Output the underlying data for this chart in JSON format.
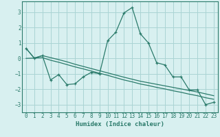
{
  "xlabel": "Humidex (Indice chaleur)",
  "x": [
    0,
    1,
    2,
    3,
    4,
    5,
    6,
    7,
    8,
    9,
    10,
    11,
    12,
    13,
    14,
    15,
    16,
    17,
    18,
    19,
    20,
    21,
    22,
    23
  ],
  "line1": [
    0.65,
    0.02,
    0.18,
    -1.4,
    -1.05,
    -1.7,
    -1.65,
    -1.2,
    -0.9,
    -1.0,
    1.15,
    1.7,
    2.95,
    3.3,
    1.6,
    1.0,
    -0.28,
    -0.42,
    -1.2,
    -1.2,
    -2.05,
    -2.05,
    -3.0,
    -2.85
  ],
  "line2": [
    0.65,
    0.02,
    0.18,
    0.05,
    -0.08,
    -0.22,
    -0.38,
    -0.52,
    -0.66,
    -0.8,
    -0.94,
    -1.08,
    -1.22,
    -1.35,
    -1.48,
    -1.58,
    -1.68,
    -1.78,
    -1.88,
    -1.98,
    -2.08,
    -2.18,
    -2.3,
    -2.42
  ],
  "line3": [
    0.0,
    0.02,
    0.05,
    -0.12,
    -0.25,
    -0.4,
    -0.55,
    -0.68,
    -0.82,
    -0.96,
    -1.1,
    -1.25,
    -1.4,
    -1.52,
    -1.66,
    -1.76,
    -1.88,
    -1.98,
    -2.1,
    -2.2,
    -2.32,
    -2.42,
    -2.55,
    -2.65
  ],
  "color": "#2a7a6a",
  "bg_color": "#d8f0f0",
  "grid_color": "#aad4d4",
  "ylim": [
    -3.5,
    3.7
  ],
  "xlim": [
    -0.5,
    23.5
  ],
  "yticks": [
    -3,
    -2,
    -1,
    0,
    1,
    2,
    3
  ],
  "xticks": [
    0,
    1,
    2,
    3,
    4,
    5,
    6,
    7,
    8,
    9,
    10,
    11,
    12,
    13,
    14,
    15,
    16,
    17,
    18,
    19,
    20,
    21,
    22,
    23
  ]
}
